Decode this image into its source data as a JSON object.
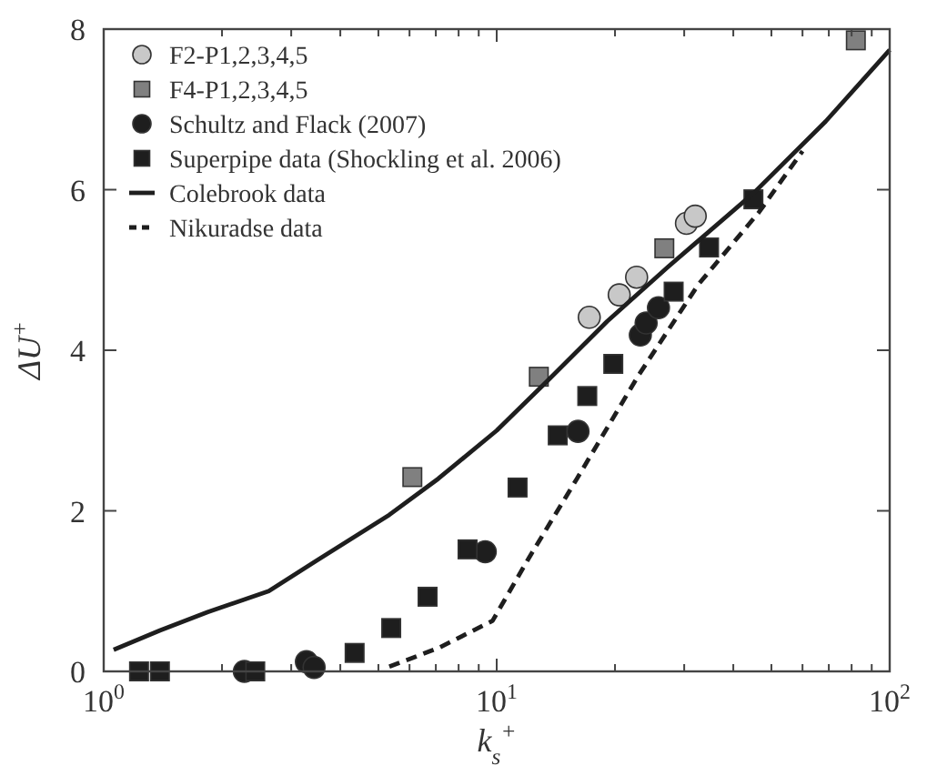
{
  "chart_data": {
    "type": "scatter",
    "xlabel": "k$_{s}$$^{+}$",
    "ylabel": "ΔU$^{+}$",
    "log": "x",
    "xlim": [
      1,
      100
    ],
    "ylim": [
      0,
      8
    ],
    "xticks": [
      {
        "value": 1,
        "label": "10$^{0}$"
      },
      {
        "value": 2,
        "label": null
      },
      {
        "value": 3,
        "label": null
      },
      {
        "value": 4,
        "label": null
      },
      {
        "value": 5,
        "label": null
      },
      {
        "value": 6,
        "label": null
      },
      {
        "value": 7,
        "label": null
      },
      {
        "value": 8,
        "label": null
      },
      {
        "value": 9,
        "label": null
      },
      {
        "value": 10,
        "label": "10$^{1}$"
      },
      {
        "value": 20,
        "label": null
      },
      {
        "value": 30,
        "label": null
      },
      {
        "value": 40,
        "label": null
      },
      {
        "value": 50,
        "label": null
      },
      {
        "value": 60,
        "label": null
      },
      {
        "value": 70,
        "label": null
      },
      {
        "value": 80,
        "label": null
      },
      {
        "value": 90,
        "label": null
      },
      {
        "value": 100,
        "label": "10$^{2}$"
      }
    ],
    "yticks": [
      0,
      2,
      4,
      6,
      8
    ],
    "grid": false,
    "legend": "top left",
    "series": [
      {
        "name": "F2-P1,2,3,4,5",
        "marker": "circle",
        "color": "#c8c8c8",
        "x": [
          17.2,
          20.5,
          22.7,
          30.4,
          32.0
        ],
        "values": [
          4.41,
          4.69,
          4.91,
          5.58,
          5.67
        ]
      },
      {
        "name": "F4-P1,2,3,4,5",
        "marker": "square",
        "color": "#808080",
        "x": [
          6.1,
          12.8,
          26.7,
          82
        ],
        "values": [
          2.42,
          3.67,
          5.27,
          7.86
        ]
      },
      {
        "name": "Schultz and Flack (2007)",
        "marker": "circle",
        "color": "#1e1e1e",
        "x": [
          2.28,
          3.28,
          3.43,
          9.35,
          16.1,
          23.2,
          24.0,
          25.8
        ],
        "values": [
          0,
          0.12,
          0.05,
          1.49,
          2.99,
          4.19,
          4.34,
          4.53
        ]
      },
      {
        "name": "Superpipe data (Shockling et al. 2006)",
        "marker": "square",
        "color": "#1e1e1e",
        "x": [
          1.23,
          1.39,
          2.43,
          4.35,
          5.39,
          6.67,
          8.43,
          11.3,
          14.3,
          17.0,
          19.8,
          28.2,
          34.7,
          45.0
        ],
        "values": [
          0,
          0,
          0,
          0.23,
          0.54,
          0.93,
          1.52,
          2.29,
          2.94,
          3.43,
          3.83,
          4.73,
          5.28,
          5.88
        ]
      },
      {
        "name": "Colebrook data",
        "type": "line",
        "line_style": "solid",
        "color": "#1e1e1e",
        "x": [
          1.06,
          1.39,
          1.84,
          2.63,
          3.48,
          5.33,
          7.1,
          10,
          13.4,
          19.1,
          27.3,
          44.9,
          68.7,
          100
        ],
        "values": [
          0.27,
          0.51,
          0.74,
          1.0,
          1.38,
          1.95,
          2.4,
          3.0,
          3.61,
          4.36,
          5.04,
          5.95,
          6.85,
          7.74
        ]
      },
      {
        "name": "Nikuradse data",
        "type": "line",
        "line_style": "dashed",
        "color": "#1e1e1e",
        "x": [
          5.33,
          7.1,
          9.76,
          12.1,
          16.0,
          22.9,
          32.6,
          46.5,
          60
        ],
        "values": [
          0.06,
          0.29,
          0.63,
          1.42,
          2.4,
          3.68,
          4.82,
          5.72,
          6.48
        ]
      }
    ]
  }
}
